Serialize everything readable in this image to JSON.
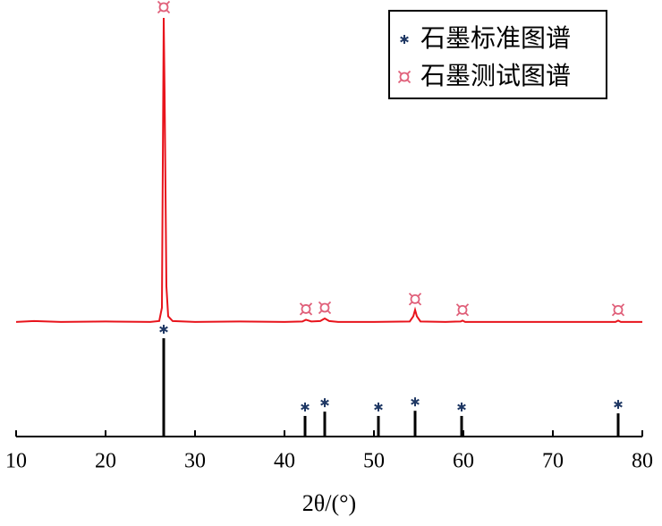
{
  "chart_data": {
    "type": "xrd",
    "xlabel": "2θ/(°)",
    "xlim": [
      10,
      80
    ],
    "xticks": [
      10,
      20,
      30,
      40,
      50,
      60,
      70,
      80
    ],
    "ylim": [
      0,
      100
    ],
    "legend": "top-right",
    "series": [
      {
        "name": "石墨标准图谱",
        "type": "stick",
        "color": "#000000",
        "marker_color": "#1f3864",
        "x": [
          26.5,
          42.3,
          44.5,
          50.5,
          54.6,
          59.8,
          77.3
        ],
        "values": [
          22.9,
          4.8,
          5.8,
          4.8,
          6.0,
          4.8,
          5.4
        ]
      },
      {
        "name": "石墨测试图谱",
        "type": "line",
        "color": "#e8141c",
        "marker_color": "#e0607a",
        "x": [
          10,
          12,
          15,
          20,
          25,
          26,
          26.3,
          26.5,
          26.6,
          26.8,
          27,
          27.5,
          30,
          35,
          40,
          42,
          42.4,
          43,
          44,
          44.5,
          45,
          46,
          50,
          54,
          54.4,
          54.6,
          54.8,
          55.2,
          58,
          59.7,
          59.9,
          60.2,
          65,
          70,
          75,
          77,
          77.3,
          77.6,
          80
        ],
        "values": [
          26.7,
          26.9,
          26.7,
          26.8,
          26.7,
          26.9,
          30,
          97.5,
          80,
          35,
          28,
          26.9,
          26.7,
          26.8,
          26.7,
          26.8,
          27.2,
          26.8,
          26.9,
          27.5,
          26.9,
          26.7,
          26.7,
          26.8,
          28,
          29.5,
          28,
          26.8,
          26.7,
          26.8,
          27.0,
          26.7,
          26.7,
          26.7,
          26.7,
          26.7,
          27.0,
          26.7,
          26.7
        ],
        "peaks": [
          26.5,
          42.4,
          44.5,
          54.6,
          59.9,
          77.3
        ]
      }
    ]
  }
}
